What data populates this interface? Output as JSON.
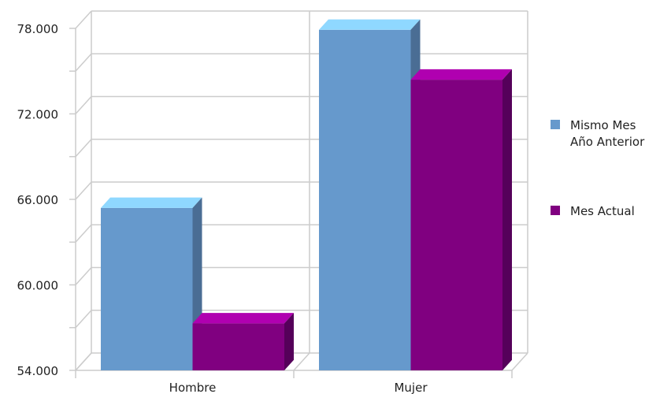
{
  "chart_data": {
    "type": "bar",
    "categories": [
      "Hombre",
      "Mujer"
    ],
    "series": [
      {
        "name": "Mismo Mes Año Anterior",
        "values": [
          65.4,
          77.9
        ],
        "color": "#6699cc",
        "top_color": "#8fd8ff",
        "side_color": "#4a6d94"
      },
      {
        "name": "Mes Actual",
        "values": [
          57.3,
          74.4
        ],
        "color": "#800080",
        "top_color": "#b000b0",
        "side_color": "#55005a"
      }
    ],
    "ylim": [
      54,
      78
    ],
    "yticks": [
      54,
      60,
      66,
      72,
      78
    ],
    "ytick_labels": [
      "54.000",
      "60.000",
      "66.000",
      "72.000",
      "78.000"
    ],
    "grid": true,
    "legend_position": "right",
    "legend_labels": [
      [
        "Mismo Mes",
        "Año Anterior"
      ],
      [
        "Mes Actual"
      ]
    ]
  }
}
